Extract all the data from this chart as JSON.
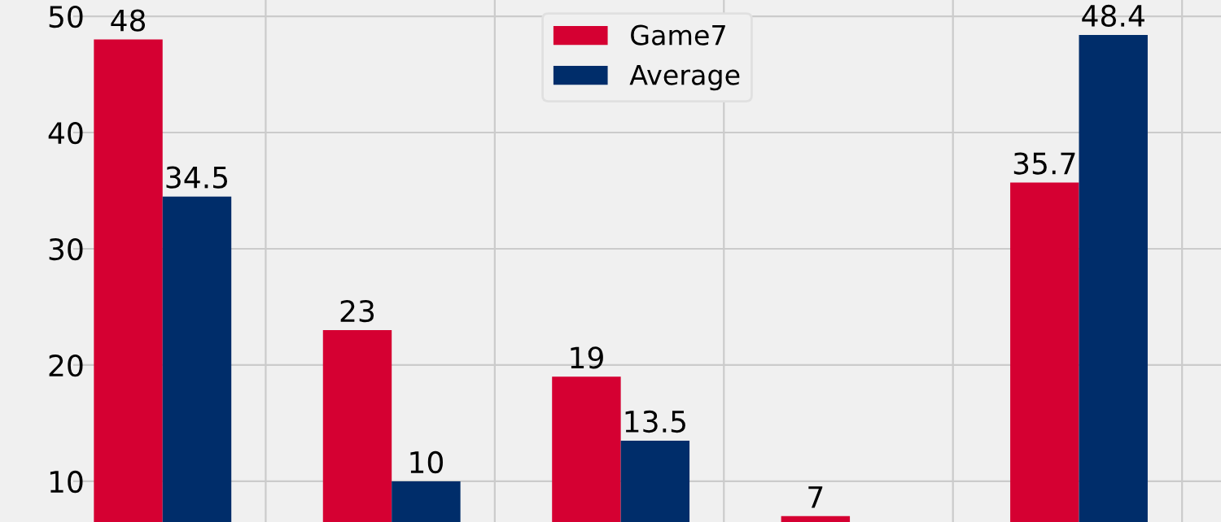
{
  "chart_data": {
    "type": "bar",
    "categories": [
      null,
      null,
      null,
      null,
      null
    ],
    "series": [
      {
        "name": "Game7",
        "color": "#d50032",
        "values": [
          48,
          23,
          19,
          7,
          35.7
        ]
      },
      {
        "name": "Average",
        "color": "#002d6a",
        "values": [
          34.5,
          10,
          13.5,
          null,
          48.4
        ]
      }
    ],
    "ylim": [
      6.5,
      51.4
    ],
    "yticks": [
      10,
      20,
      30,
      40,
      50
    ],
    "grid": true,
    "legend": "top",
    "data_labels": true,
    "tick_labels": "y"
  }
}
